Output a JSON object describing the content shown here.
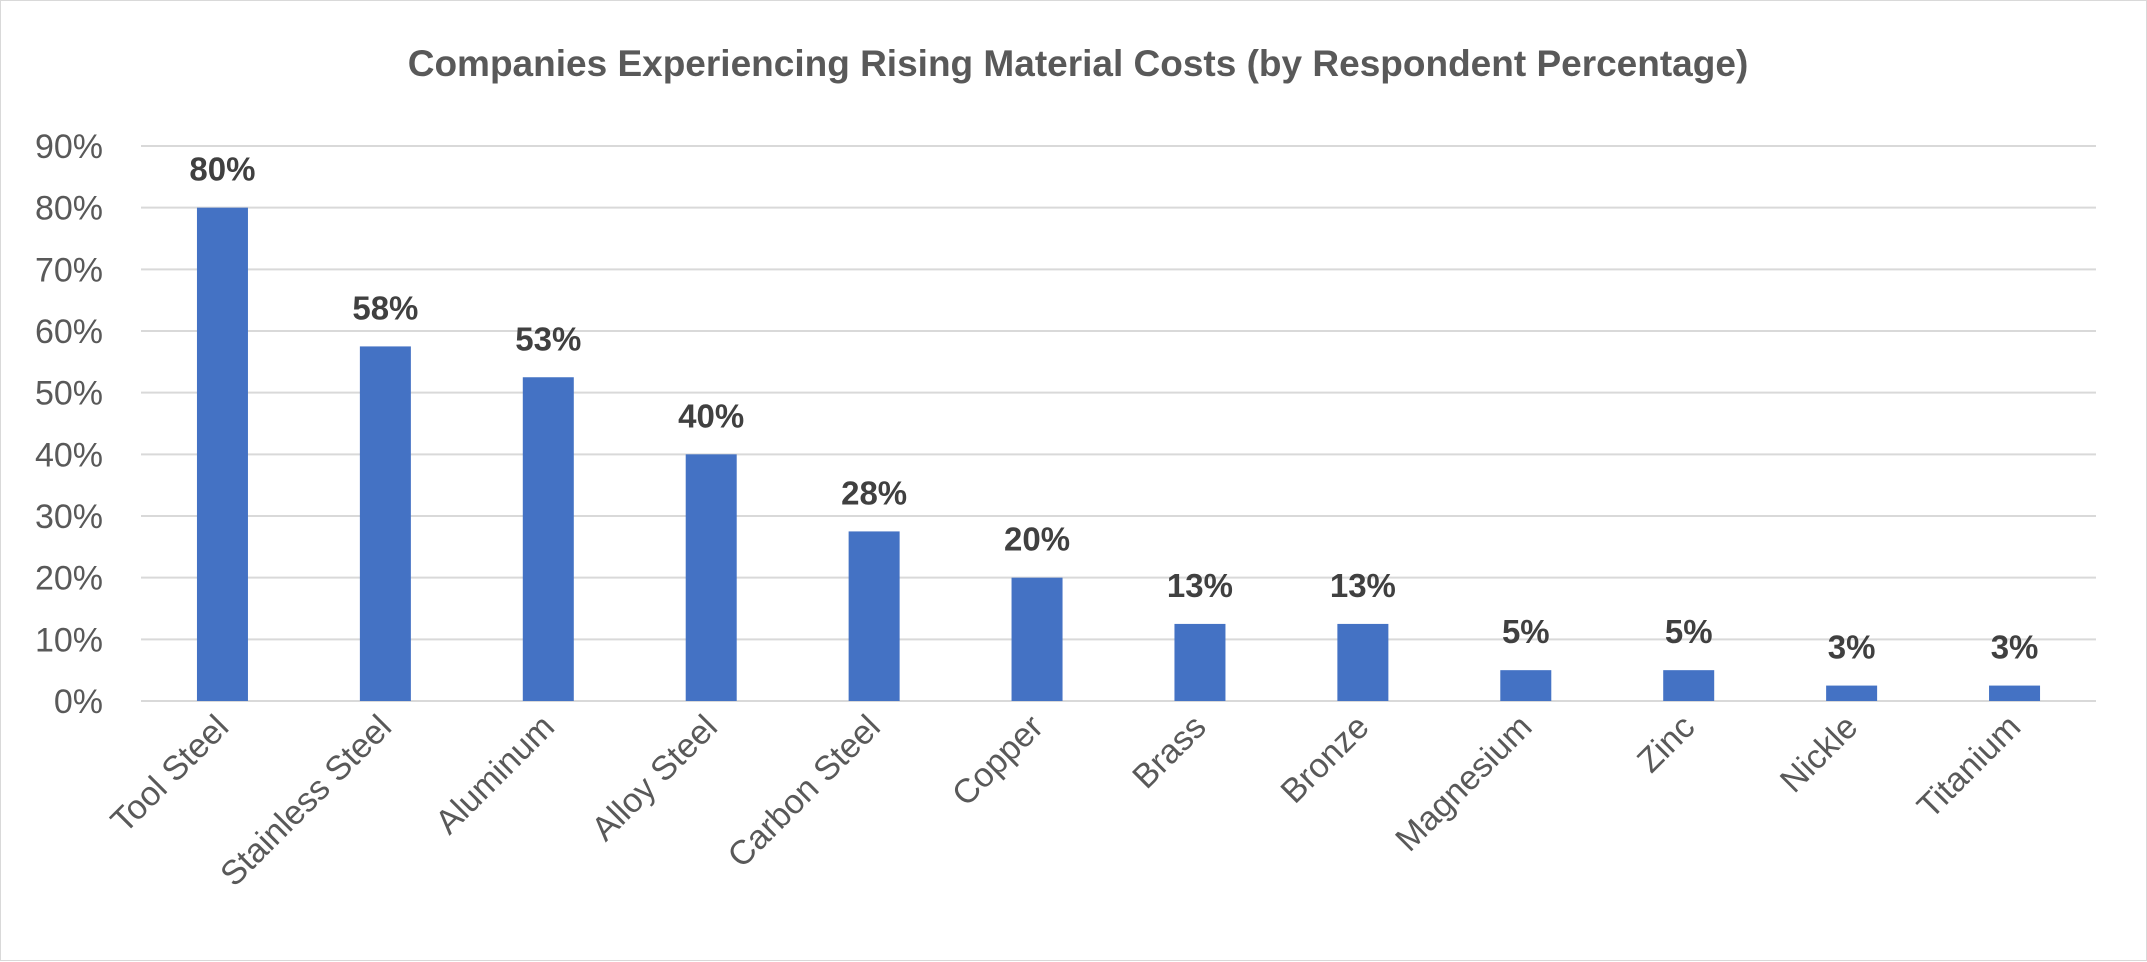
{
  "chart_data": {
    "type": "bar",
    "title": "Companies Experiencing Rising Material Costs (by Respondent Percentage)",
    "xlabel": "",
    "ylabel": "",
    "categories": [
      "Tool Steel",
      "Stainless Steel",
      "Aluminum",
      "Alloy Steel",
      "Carbon Steel",
      "Copper",
      "Brass",
      "Bronze",
      "Magnesium",
      "Zinc",
      "Nickle",
      "Titanium"
    ],
    "values": [
      80,
      57.5,
      52.5,
      40,
      27.5,
      20,
      12.5,
      12.5,
      5,
      5,
      2.5,
      2.5
    ],
    "data_labels": [
      "80%",
      "58%",
      "53%",
      "40%",
      "28%",
      "20%",
      "13%",
      "13%",
      "5%",
      "5%",
      "3%",
      "3%"
    ],
    "ylim": [
      0,
      90
    ],
    "yticks": [
      0,
      10,
      20,
      30,
      40,
      50,
      60,
      70,
      80,
      90
    ],
    "ytick_labels": [
      "0%",
      "10%",
      "20%",
      "30%",
      "40%",
      "50%",
      "60%",
      "70%",
      "80%",
      "90%"
    ],
    "grid": true,
    "legend": "none",
    "bar_color": "#4472c4"
  }
}
